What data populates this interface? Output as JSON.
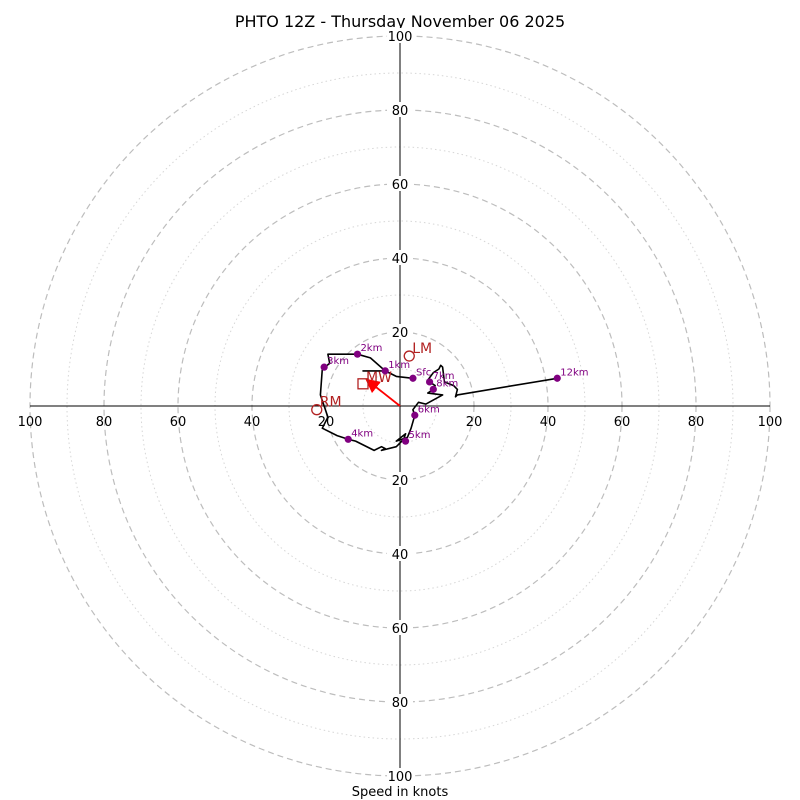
{
  "chart_data": {
    "type": "hodograph",
    "title": "PHTO 12Z - Thursday November 06 2025",
    "xlabel": "Speed in knots",
    "ylabel": "",
    "xlim": [
      -100,
      100
    ],
    "ylim": [
      -100,
      100
    ],
    "tick_values": [
      20,
      40,
      60,
      80,
      100
    ],
    "ring_major": [
      20,
      40,
      60,
      80,
      100
    ],
    "ring_minor": [
      10,
      30,
      50,
      70,
      90
    ],
    "hodograph_trace": [
      [
        3.5,
        7.5
      ],
      [
        -1,
        8
      ],
      [
        -4,
        9.5
      ],
      [
        -10,
        9.5
      ],
      [
        -4,
        9.5
      ],
      [
        -8,
        13
      ],
      [
        -11.5,
        14
      ],
      [
        -19.5,
        14
      ],
      [
        -19,
        11.5
      ],
      [
        -21,
        10
      ],
      [
        -21.5,
        3
      ],
      [
        -19.5,
        -3
      ],
      [
        -21,
        -6
      ],
      [
        -17,
        -8
      ],
      [
        -14,
        -9
      ],
      [
        -12,
        -9.5
      ],
      [
        -7,
        -12
      ],
      [
        -5,
        -11
      ],
      [
        -4,
        -11.5
      ],
      [
        -5,
        -12
      ],
      [
        -1,
        -11
      ],
      [
        1,
        -9
      ],
      [
        1.5,
        -7.5
      ],
      [
        -1,
        -9.5
      ],
      [
        2,
        -8.5
      ],
      [
        3,
        -6
      ],
      [
        4,
        -2.5
      ],
      [
        3.5,
        -1
      ],
      [
        5,
        1
      ],
      [
        7,
        0.5
      ],
      [
        11.5,
        3
      ],
      [
        7.5,
        3.5
      ],
      [
        9,
        4.5
      ],
      [
        9.5,
        5.5
      ],
      [
        8,
        6.5
      ],
      [
        7.5,
        7
      ],
      [
        9,
        9
      ],
      [
        10.5,
        10
      ],
      [
        11,
        11
      ],
      [
        11.5,
        10.5
      ],
      [
        12,
        6.5
      ],
      [
        14.5,
        5.5
      ],
      [
        15.5,
        4.5
      ],
      [
        15,
        2.5
      ],
      [
        15.5,
        3
      ],
      [
        42.5,
        7.5
      ]
    ],
    "height_markers": [
      {
        "label": "Sfc",
        "u": 3.5,
        "v": 7.5
      },
      {
        "label": "1km",
        "u": -4,
        "v": 9.5
      },
      {
        "label": "2km",
        "u": -11.5,
        "v": 14
      },
      {
        "label": "3km",
        "u": -20.5,
        "v": 10.5
      },
      {
        "label": "4km",
        "u": -14,
        "v": -9
      },
      {
        "label": "5km",
        "u": 1.5,
        "v": -9.5
      },
      {
        "label": "6km",
        "u": 4,
        "v": -2.5
      },
      {
        "label": "7km",
        "u": 8,
        "v": 6.5
      },
      {
        "label": "8km",
        "u": 9,
        "v": 4.5
      },
      {
        "label": "12km",
        "u": 42.5,
        "v": 7.5
      }
    ],
    "storm_motions": [
      {
        "label": "LM",
        "u": 2.5,
        "v": 13.5,
        "shape": "circle"
      },
      {
        "label": "RM",
        "u": -22.5,
        "v": -1,
        "shape": "circle"
      },
      {
        "label": "MW",
        "u": -10,
        "v": 6,
        "shape": "square"
      }
    ],
    "shear_vector": {
      "from": [
        0,
        0
      ],
      "to": [
        -10,
        6
      ],
      "color": "#ff0000"
    },
    "grid": true
  },
  "colors": {
    "marker": "#800080",
    "storm": "#b22222",
    "shear": "#ff0000"
  }
}
